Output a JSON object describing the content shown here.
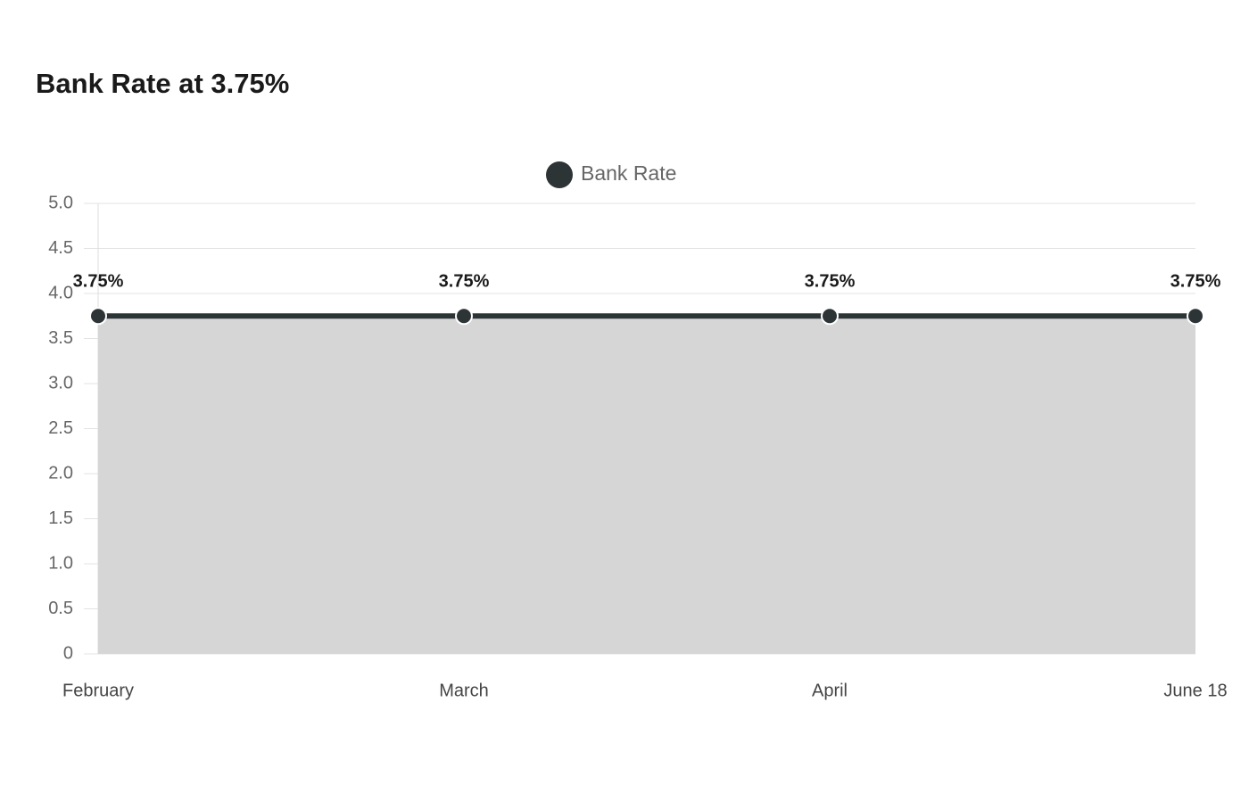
{
  "chart_data": {
    "type": "area",
    "title": "Bank Rate at 3.75%",
    "categories": [
      "February",
      "March",
      "April",
      "June 18"
    ],
    "series": [
      {
        "name": "Bank Rate",
        "color": "#2d3436",
        "fill": "#d6d6d6",
        "values": [
          3.75,
          3.75,
          3.75,
          3.75
        ],
        "value_labels": [
          "3.75%",
          "3.75%",
          "3.75%",
          "3.75%"
        ]
      }
    ],
    "ylim": [
      0,
      5
    ],
    "yticks": [
      0,
      0.5,
      {
        "value": 1,
        "label": "1.0"
      },
      1.5,
      {
        "value": 2,
        "label": "2.0"
      },
      2.5,
      {
        "value": 3,
        "label": "3.0"
      },
      3.5,
      {
        "value": 4,
        "label": "4.0"
      },
      4.5,
      {
        "value": 5,
        "label": "5.0"
      }
    ],
    "grid": true,
    "legend": "top"
  }
}
